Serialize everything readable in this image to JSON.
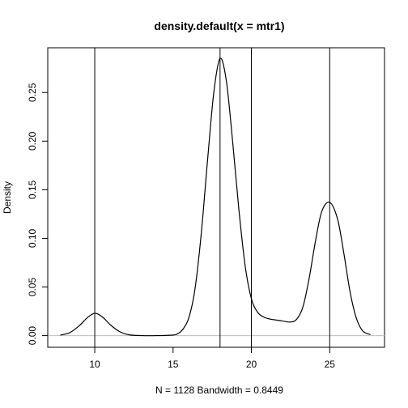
{
  "chart_data": {
    "type": "line",
    "title": "density.default(x = mtr1)",
    "xlabel": "N = 1128   Bandwidth = 0.8449",
    "ylabel": "Density",
    "xlim": [
      7.0,
      28.5
    ],
    "ylim": [
      -0.012,
      0.296
    ],
    "x_ticks": [
      10,
      15,
      20,
      25
    ],
    "x_tick_labels": [
      "10",
      "15",
      "20",
      "25"
    ],
    "y_ticks": [
      0.0,
      0.05,
      0.1,
      0.15,
      0.2,
      0.25
    ],
    "y_tick_labels": [
      "0.00",
      "0.05",
      "0.10",
      "0.15",
      "0.20",
      "0.25"
    ],
    "vertical_lines": [
      10,
      18,
      20,
      25
    ],
    "baseline": 0,
    "series": [
      {
        "x": [
          7.8,
          8.4,
          9.0,
          9.5,
          10.0,
          10.5,
          11.0,
          11.6,
          12.2,
          13.0,
          14.0,
          15.0,
          15.3,
          15.6,
          16.0,
          16.4,
          16.8,
          17.2,
          17.6,
          18.0,
          18.4,
          18.8,
          19.2,
          19.6,
          20.0,
          20.4,
          20.8,
          21.2,
          21.6,
          22.0,
          22.5,
          22.9,
          23.3,
          23.7,
          24.1,
          24.5,
          25.0,
          25.5,
          25.9,
          26.3,
          26.7,
          27.1,
          27.6
        ],
        "y": [
          0.0005,
          0.003,
          0.01,
          0.018,
          0.023,
          0.019,
          0.011,
          0.004,
          0.0008,
          0.0,
          0.0,
          0.0006,
          0.002,
          0.006,
          0.018,
          0.048,
          0.105,
          0.18,
          0.25,
          0.285,
          0.262,
          0.2,
          0.13,
          0.072,
          0.038,
          0.024,
          0.019,
          0.017,
          0.016,
          0.015,
          0.014,
          0.017,
          0.03,
          0.06,
          0.098,
          0.128,
          0.137,
          0.12,
          0.085,
          0.045,
          0.018,
          0.005,
          0.001
        ]
      }
    ]
  }
}
